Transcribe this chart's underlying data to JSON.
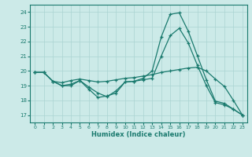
{
  "xlabel": "Humidex (Indice chaleur)",
  "bg_color": "#cceae8",
  "grid_color": "#aad4d2",
  "line_color": "#1a7a6e",
  "xlim": [
    -0.5,
    23.5
  ],
  "ylim": [
    16.5,
    24.5
  ],
  "xticks": [
    0,
    1,
    2,
    3,
    4,
    5,
    6,
    7,
    8,
    9,
    10,
    11,
    12,
    13,
    14,
    15,
    16,
    17,
    18,
    19,
    20,
    21,
    22,
    23
  ],
  "yticks": [
    17,
    18,
    19,
    20,
    21,
    22,
    23,
    24
  ],
  "line1_x": [
    0,
    1,
    2,
    3,
    4,
    5,
    6,
    7,
    8,
    9,
    10,
    11,
    12,
    13,
    14,
    15,
    16,
    17,
    18,
    19,
    20,
    21,
    22,
    23
  ],
  "line1_y": [
    19.9,
    19.9,
    19.3,
    19.0,
    19.0,
    19.35,
    18.75,
    18.2,
    18.3,
    18.5,
    19.25,
    19.3,
    19.5,
    20.0,
    22.3,
    23.85,
    23.95,
    22.7,
    21.05,
    19.4,
    17.95,
    17.8,
    17.4,
    17.0
  ],
  "line2_x": [
    0,
    1,
    2,
    3,
    4,
    5,
    6,
    7,
    8,
    9,
    10,
    11,
    12,
    13,
    14,
    15,
    16,
    17,
    18,
    19,
    20,
    21,
    22,
    23
  ],
  "line2_y": [
    19.9,
    19.9,
    19.3,
    19.2,
    19.35,
    19.45,
    19.35,
    19.25,
    19.3,
    19.4,
    19.5,
    19.55,
    19.65,
    19.75,
    19.9,
    20.0,
    20.1,
    20.2,
    20.25,
    20.0,
    19.45,
    18.95,
    18.0,
    17.0
  ],
  "line3_x": [
    0,
    1,
    2,
    3,
    4,
    5,
    6,
    7,
    8,
    9,
    10,
    11,
    12,
    13,
    14,
    15,
    16,
    17,
    18,
    19,
    20,
    21,
    22,
    23
  ],
  "line3_y": [
    19.9,
    19.9,
    19.3,
    19.0,
    19.1,
    19.35,
    18.9,
    18.5,
    18.25,
    18.65,
    19.25,
    19.3,
    19.4,
    19.5,
    21.0,
    22.4,
    22.9,
    21.9,
    20.4,
    19.0,
    17.85,
    17.7,
    17.4,
    17.0
  ]
}
